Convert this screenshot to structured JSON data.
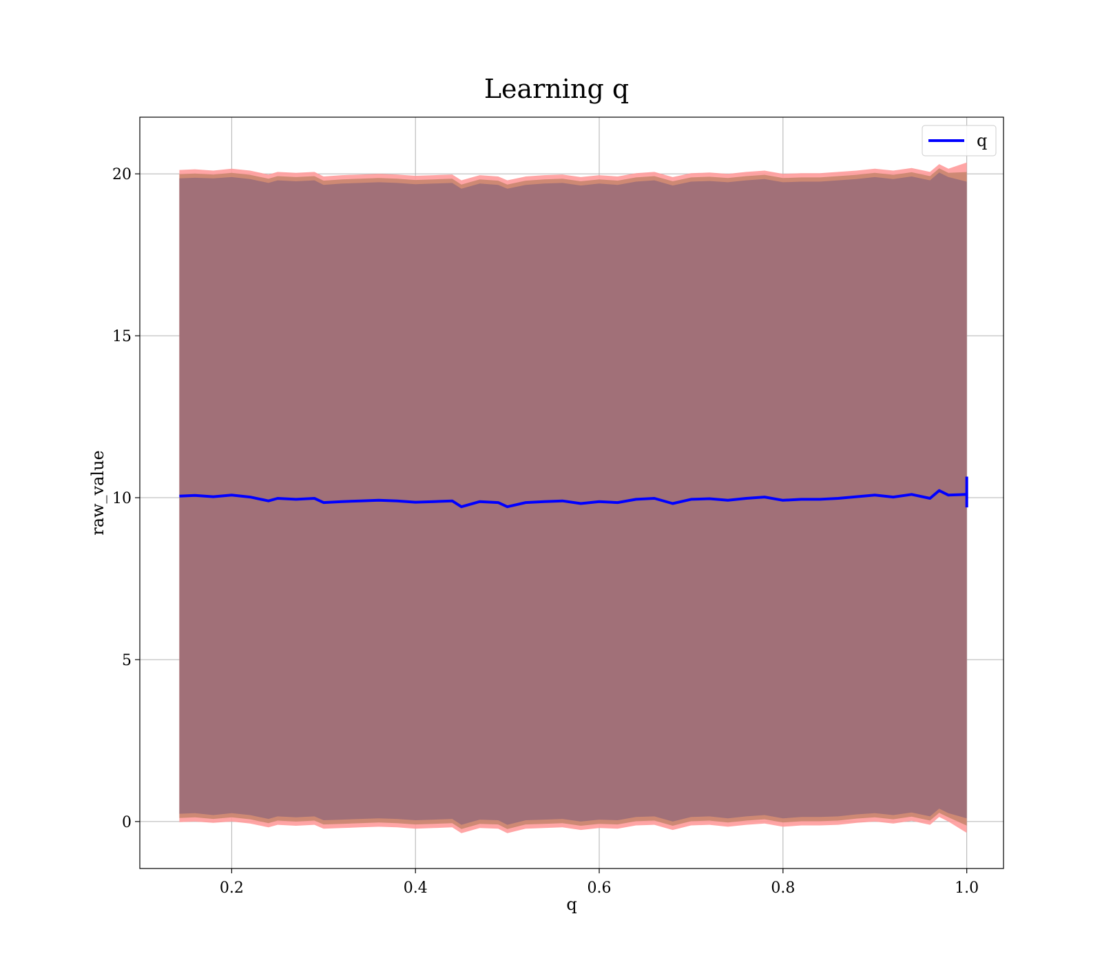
{
  "chart_data": {
    "type": "line",
    "title": "Learning q",
    "xlabel": "q",
    "ylabel": "raw_value",
    "xlim": [
      0.1,
      1.04
    ],
    "ylim": [
      -1.45,
      21.75
    ],
    "grid": true,
    "legend_position": "top-right",
    "x_ticks": [
      0.2,
      0.4,
      0.6,
      0.8,
      1.0
    ],
    "x_tick_labels": [
      "0.2",
      "0.4",
      "0.6",
      "0.8",
      "1.0"
    ],
    "y_ticks": [
      0,
      5,
      10,
      15,
      20
    ],
    "y_tick_labels": [
      "0",
      "5",
      "10",
      "15",
      "20"
    ],
    "colors": {
      "line": "#0000ff",
      "band_outer": "#ff9b9b",
      "band_mid": "#c9866f",
      "band_inner": "#a17078",
      "grid": "#b0b0b0"
    },
    "series": [
      {
        "name": "q",
        "x": [
          0.143,
          0.16,
          0.18,
          0.2,
          0.22,
          0.24,
          0.25,
          0.27,
          0.29,
          0.3,
          0.32,
          0.34,
          0.36,
          0.38,
          0.4,
          0.42,
          0.44,
          0.45,
          0.47,
          0.49,
          0.5,
          0.52,
          0.54,
          0.56,
          0.58,
          0.6,
          0.62,
          0.64,
          0.66,
          0.68,
          0.7,
          0.72,
          0.74,
          0.76,
          0.78,
          0.8,
          0.82,
          0.84,
          0.86,
          0.88,
          0.9,
          0.92,
          0.94,
          0.96,
          0.97,
          0.98,
          1.0
        ],
        "values": [
          10.05,
          10.07,
          10.03,
          10.08,
          10.02,
          9.9,
          9.98,
          9.95,
          9.98,
          9.85,
          9.88,
          9.9,
          9.92,
          9.9,
          9.86,
          9.88,
          9.9,
          9.72,
          9.88,
          9.85,
          9.72,
          9.85,
          9.88,
          9.9,
          9.82,
          9.88,
          9.85,
          9.95,
          9.98,
          9.82,
          9.95,
          9.97,
          9.92,
          9.98,
          10.02,
          9.92,
          9.95,
          9.95,
          9.98,
          10.03,
          10.08,
          10.02,
          10.1,
          9.98,
          10.22,
          10.08,
          10.1
        ],
        "band_inner_upper": [
          19.86,
          19.88,
          19.86,
          19.9,
          19.84,
          19.72,
          19.8,
          19.77,
          19.8,
          19.66,
          19.7,
          19.72,
          19.74,
          19.72,
          19.68,
          19.7,
          19.72,
          19.54,
          19.7,
          19.66,
          19.54,
          19.66,
          19.7,
          19.72,
          19.64,
          19.7,
          19.66,
          19.76,
          19.8,
          19.64,
          19.76,
          19.78,
          19.74,
          19.8,
          19.84,
          19.74,
          19.76,
          19.76,
          19.8,
          19.84,
          19.9,
          19.84,
          19.92,
          19.8,
          20.04,
          19.9,
          19.76
        ],
        "band_inner_lower": [
          0.24,
          0.26,
          0.2,
          0.26,
          0.2,
          0.08,
          0.16,
          0.13,
          0.16,
          0.04,
          0.06,
          0.08,
          0.1,
          0.08,
          0.04,
          0.06,
          0.08,
          -0.1,
          0.06,
          0.04,
          -0.1,
          0.04,
          0.06,
          0.08,
          0.0,
          0.06,
          0.04,
          0.14,
          0.16,
          0.0,
          0.14,
          0.16,
          0.1,
          0.16,
          0.2,
          0.1,
          0.14,
          0.14,
          0.16,
          0.22,
          0.26,
          0.2,
          0.28,
          0.16,
          0.4,
          0.26,
          0.1
        ],
        "band_outer_upper": [
          20.12,
          20.14,
          20.1,
          20.16,
          20.1,
          19.98,
          20.06,
          20.03,
          20.06,
          19.92,
          19.96,
          19.98,
          20.0,
          19.98,
          19.94,
          19.96,
          19.98,
          19.8,
          19.96,
          19.92,
          19.8,
          19.92,
          19.96,
          19.98,
          19.9,
          19.96,
          19.92,
          20.02,
          20.06,
          19.9,
          20.02,
          20.04,
          20.0,
          20.06,
          20.1,
          20.0,
          20.02,
          20.02,
          20.06,
          20.1,
          20.16,
          20.1,
          20.18,
          20.06,
          20.3,
          20.16,
          20.35
        ],
        "band_outer_lower": [
          -0.02,
          0.0,
          -0.04,
          0.0,
          -0.06,
          -0.18,
          -0.1,
          -0.13,
          -0.1,
          -0.22,
          -0.2,
          -0.18,
          -0.16,
          -0.18,
          -0.22,
          -0.2,
          -0.18,
          -0.36,
          -0.2,
          -0.22,
          -0.36,
          -0.22,
          -0.2,
          -0.18,
          -0.26,
          -0.2,
          -0.22,
          -0.12,
          -0.1,
          -0.26,
          -0.12,
          -0.1,
          -0.16,
          -0.1,
          -0.06,
          -0.16,
          -0.12,
          -0.12,
          -0.1,
          -0.04,
          0.0,
          -0.06,
          0.02,
          -0.1,
          0.14,
          0.0,
          -0.35
        ]
      }
    ],
    "legend": [
      {
        "label": "q"
      }
    ]
  }
}
